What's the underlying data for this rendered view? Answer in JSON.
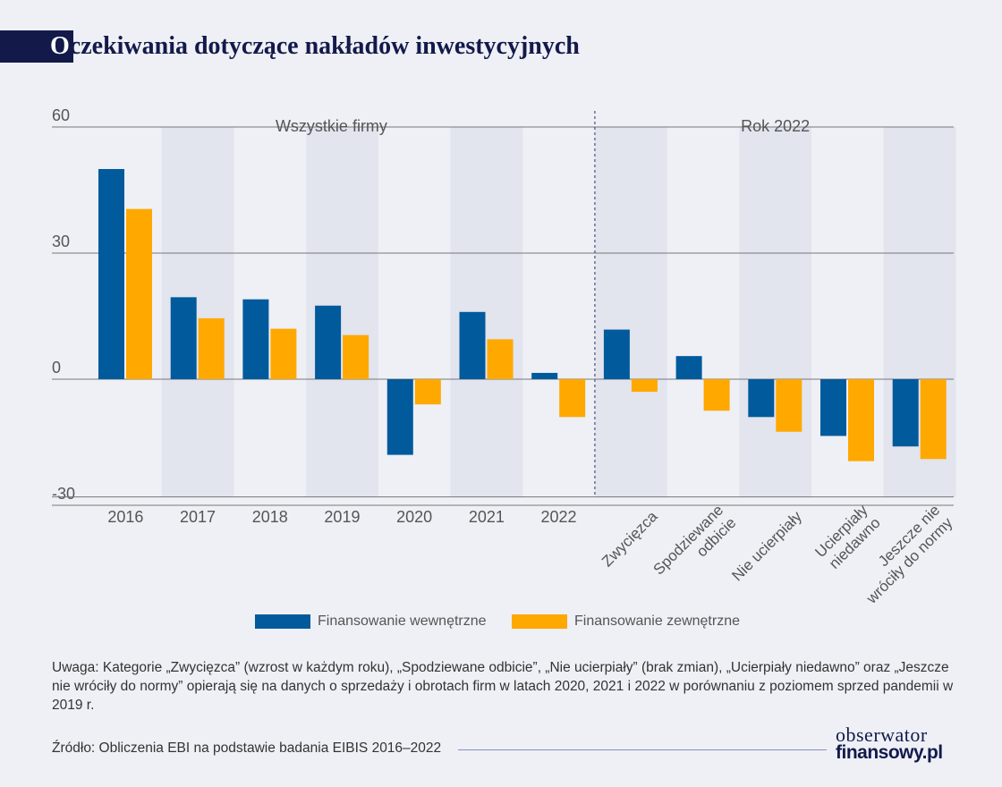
{
  "title": {
    "first_letter": "O",
    "rest": "czekiwania dotyczące nakładów inwestycyjnych"
  },
  "chart_data": {
    "type": "bar",
    "categories": [
      "2016",
      "2017",
      "2018",
      "2019",
      "2020",
      "2021",
      "2022",
      "Zwycięzca",
      "Spodziewane odbicie",
      "Nie ucierpiały",
      "Ucierpiały niedawno",
      "Jeszcze nie wróciły do normy"
    ],
    "category_lines": [
      [
        "2016"
      ],
      [
        "2017"
      ],
      [
        "2018"
      ],
      [
        "2019"
      ],
      [
        "2020"
      ],
      [
        "2021"
      ],
      [
        "2022"
      ],
      [
        "Zwycięzca"
      ],
      [
        "Spodziewane",
        "odbicie"
      ],
      [
        "Nie ucierpiały"
      ],
      [
        "Ucierpiały",
        "niedawno"
      ],
      [
        "Jeszcze nie",
        "wróciły do normy"
      ]
    ],
    "groups": [
      {
        "label": "Wszystkie firmy",
        "categories": [
          "2016",
          "2017",
          "2018",
          "2019",
          "2020",
          "2021",
          "2022"
        ]
      },
      {
        "label": "Rok 2022",
        "categories": [
          "Zwycięzca",
          "Spodziewane odbicie",
          "Nie ucierpiały",
          "Ucierpiały niedawno",
          "Jeszcze nie wróciły do normy"
        ]
      }
    ],
    "series": [
      {
        "name": "Finansowanie wewnętrzne",
        "color": "#005a9c",
        "values": [
          50,
          19.5,
          19,
          17.5,
          -18,
          16,
          1.5,
          11.8,
          5.5,
          -9,
          -13.5,
          -16
        ]
      },
      {
        "name": "Finansowanie zewnętrzne",
        "color": "#fea800",
        "values": [
          40.5,
          14.5,
          12,
          10.5,
          -6,
          9.5,
          -9,
          -3,
          -7.5,
          -12.5,
          -19.5,
          -19
        ]
      }
    ],
    "yticks": [
      60,
      30,
      0,
      -30
    ],
    "ylim": [
      -28,
      60
    ],
    "grid": true,
    "legend_position": "bottom"
  },
  "note": "Uwaga: Kategorie „Zwycięzca” (wzrost w każdym roku), „Spodziewane odbicie”, „Nie ucierpiały” (brak zmian), „Ucierpiały niedawno” oraz „Jeszcze nie wróciły do normy” opierają się na danych o sprzedaży i obrotach firm w latach 2020, 2021 i 2022 w porównaniu z poziomem sprzed pandemii w 2019 r.",
  "source": "Źródło: Obliczenia EBI na podstawie badania EIBIS 2016–2022",
  "logo": {
    "line1": "obserwator",
    "line2": "finansowy.pl"
  }
}
